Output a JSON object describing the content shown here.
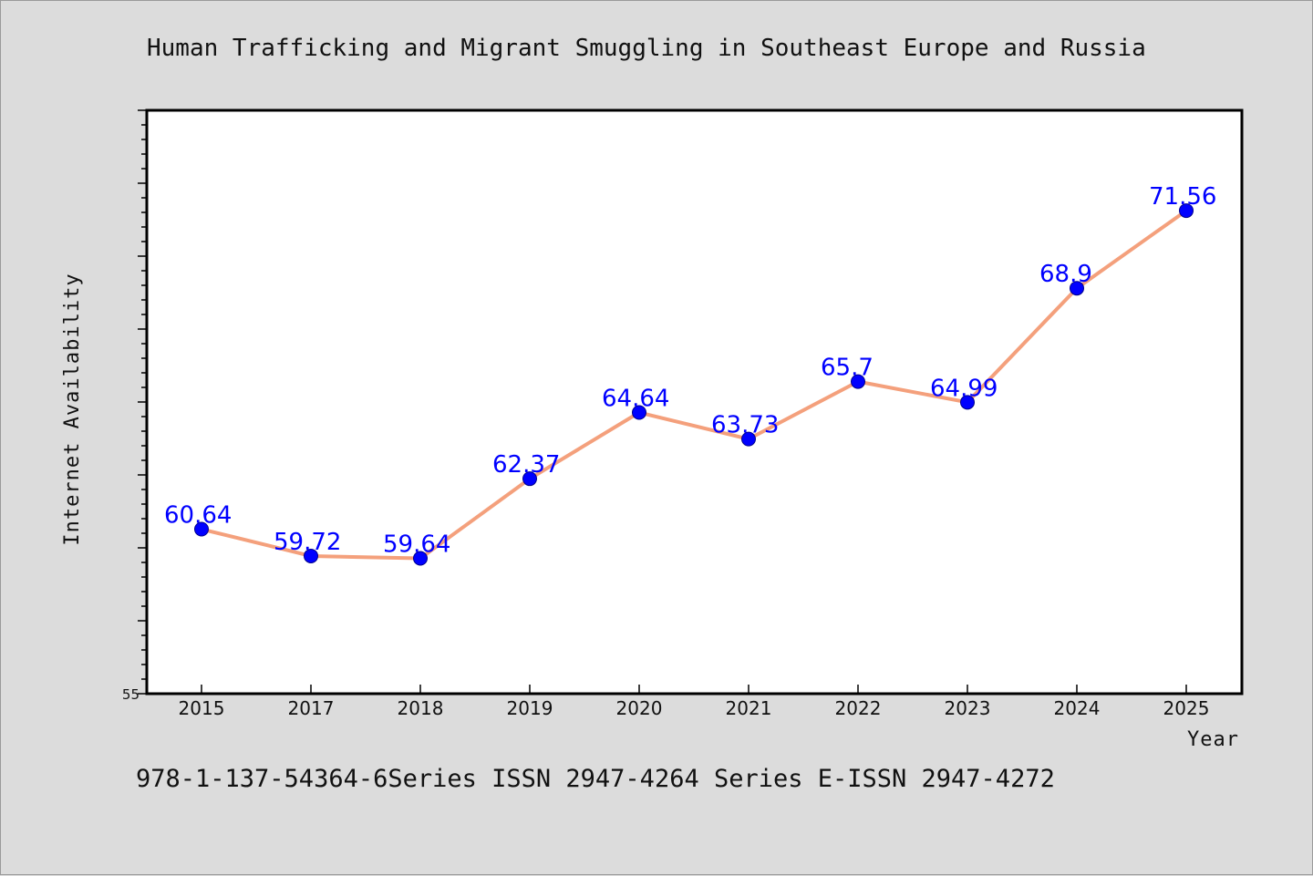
{
  "chart_data": {
    "type": "line",
    "title": "Human Trafficking and Migrant Smuggling in Southeast Europe and Russia",
    "xlabel": "Year",
    "ylabel": "Internet Availability",
    "categories": [
      "2015",
      "2017",
      "2018",
      "2019",
      "2020",
      "2021",
      "2022",
      "2023",
      "2024",
      "2025"
    ],
    "series": [
      {
        "values": [
          60.64,
          59.72,
          59.64,
          62.37,
          64.64,
          63.73,
          65.7,
          64.99,
          68.9,
          71.56
        ],
        "labels": [
          "60.64",
          "59.72",
          "59.64",
          "62.37",
          "64.64",
          "63.73",
          "65.7",
          "64.99",
          "68.9",
          "71.56"
        ]
      }
    ],
    "ylim": [
      55,
      75
    ],
    "y_tick_labels": [
      "55"
    ],
    "grid": false,
    "colors": {
      "line": "#f4a07c",
      "marker": "#0000ff",
      "label": "#0000ff",
      "background": "#dcdcdc",
      "plot_background": "#ffffff"
    }
  },
  "footer": "978-1-137-54364-6Series ISSN 2947-4264 Series E-ISSN 2947-4272"
}
